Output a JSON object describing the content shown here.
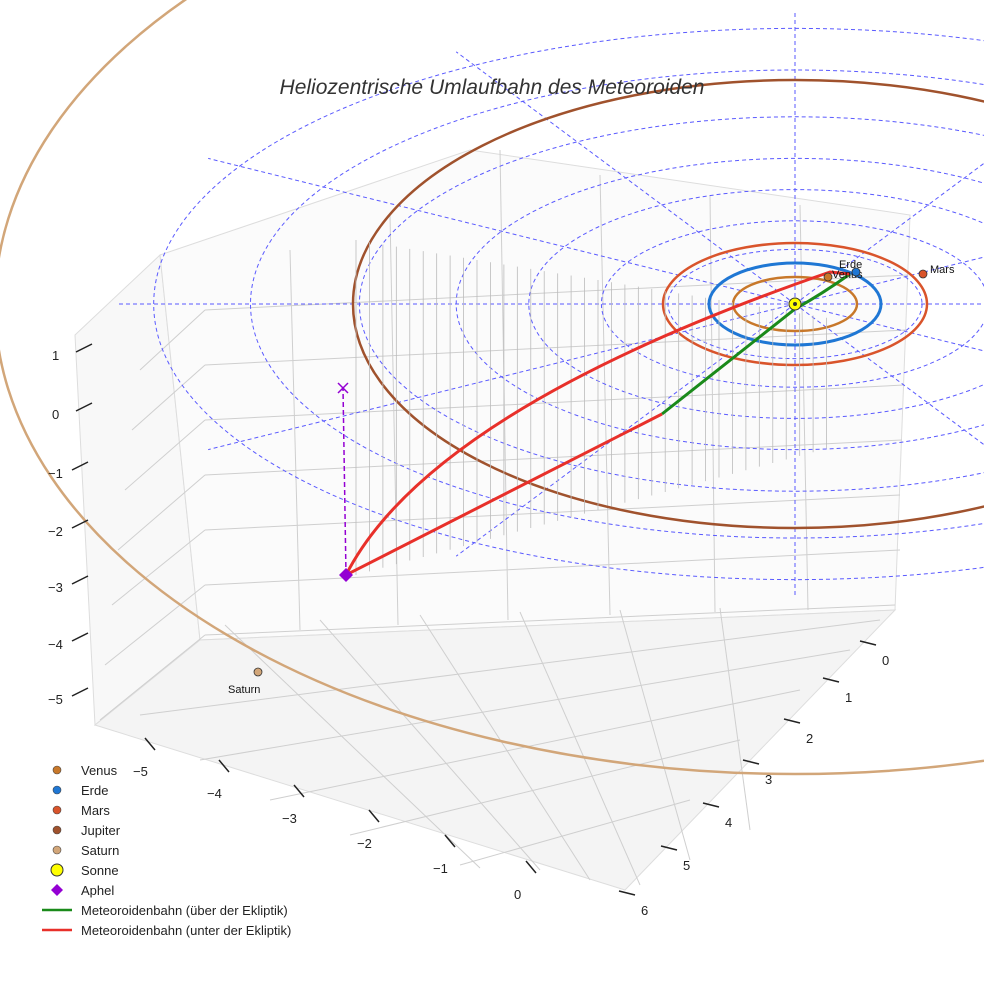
{
  "chart_data": {
    "type": "scatter",
    "title": "Heliozentrische Umlaufbahn des Meteoroiden",
    "xlabel": "",
    "ylabel": "",
    "zlabel": "",
    "x_ticks": [
      "−5",
      "−4",
      "−3",
      "−2",
      "−1",
      "0"
    ],
    "y_ticks": [
      "0",
      "1",
      "2",
      "3",
      "4",
      "5",
      "6"
    ],
    "z_ticks": [
      "1",
      "0",
      "−1",
      "−2",
      "−3",
      "−4",
      "−5"
    ],
    "grid": true,
    "legend_position": "bottom-left",
    "planets": [
      {
        "name": "Venus",
        "label": "Venus",
        "orbit_radius_au": 0.72,
        "color": "#c8782a"
      },
      {
        "name": "Erde",
        "label": "Erde",
        "orbit_radius_au": 1.0,
        "color": "#1f77d4"
      },
      {
        "name": "Mars",
        "label": "Mars",
        "orbit_radius_au": 1.52,
        "color": "#d9542b"
      },
      {
        "name": "Jupiter",
        "label": "",
        "orbit_radius_au": 5.2,
        "color": "#a0522d"
      },
      {
        "name": "Saturn",
        "label": "Saturn",
        "orbit_radius_au": 9.5,
        "color": "#d2a679"
      }
    ],
    "sun": {
      "name": "Sonne",
      "x": 0,
      "y": 0,
      "z": 0,
      "color": "#ffff00"
    },
    "aphel": {
      "name": "Aphel",
      "x": -4.9,
      "y": 0.6,
      "z": -2.8,
      "color": "#9400d3"
    },
    "meteoroid_orbit": {
      "above": {
        "name": "Meteoroidenbahn (über der Ekliptik)",
        "color": "#1a8a1a"
      },
      "below": {
        "name": "Meteoroidenbahn (unter der Ekliptik)",
        "color": "#e8302a"
      }
    },
    "legend": [
      {
        "label": "Venus",
        "marker": "circle",
        "color": "#c8782a"
      },
      {
        "label": "Erde",
        "marker": "circle",
        "color": "#1f77d4"
      },
      {
        "label": "Mars",
        "marker": "circle",
        "color": "#d9542b"
      },
      {
        "label": "Jupiter",
        "marker": "circle",
        "color": "#a0522d"
      },
      {
        "label": "Saturn",
        "marker": "circle",
        "color": "#d2a679"
      },
      {
        "label": "Sonne",
        "marker": "sun",
        "color": "#ffff00"
      },
      {
        "label": "Aphel",
        "marker": "diamond",
        "color": "#9400d3"
      },
      {
        "label": "Meteoroidenbahn (über der Ekliptik)",
        "marker": "line",
        "color": "#1a8a1a"
      },
      {
        "label": "Meteoroidenbahn (unter der Ekliptik)",
        "marker": "line",
        "color": "#e8302a"
      }
    ]
  }
}
